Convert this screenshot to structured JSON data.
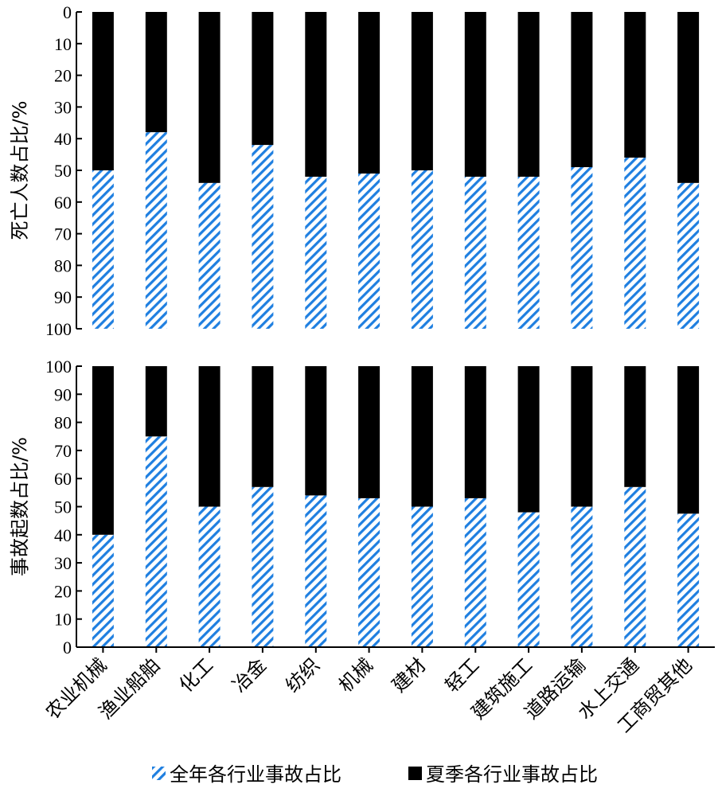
{
  "chart_data": [
    {
      "type": "bar",
      "stacked": true,
      "ylabel": "死亡人数占比/%",
      "ylim": [
        0,
        100
      ],
      "y_inverted": true,
      "yticks": [
        "0",
        "10",
        "20",
        "30",
        "40",
        "50",
        "60",
        "70",
        "80",
        "90",
        "100"
      ],
      "categories": [
        "农业机械",
        "渔业船舶",
        "化工",
        "冶金",
        "纺织",
        "机械",
        "建材",
        "轻工",
        "建筑施工",
        "道路运输",
        "水上交通",
        "工商贸其他"
      ],
      "series": [
        {
          "name": "夏季各行业事故占比",
          "values": [
            50,
            38,
            54,
            42,
            52,
            51,
            50,
            52,
            52,
            49,
            46,
            54
          ]
        },
        {
          "name": "全年各行业事故占比",
          "values": [
            50,
            62,
            46,
            58,
            48,
            49,
            50,
            48,
            48,
            51,
            54,
            46
          ]
        }
      ]
    },
    {
      "type": "bar",
      "stacked": true,
      "ylabel": "事故起数占比/%",
      "ylim": [
        0,
        100
      ],
      "yticks": [
        "0",
        "10",
        "20",
        "30",
        "40",
        "50",
        "60",
        "70",
        "80",
        "90",
        "100"
      ],
      "categories": [
        "农业机械",
        "渔业船舶",
        "化工",
        "冶金",
        "纺织",
        "机械",
        "建材",
        "轻工",
        "建筑施工",
        "道路运输",
        "水上交通",
        "工商贸其他"
      ],
      "series": [
        {
          "name": "全年各行业事故占比",
          "values": [
            40,
            75,
            50,
            57,
            54,
            53,
            50,
            53,
            48,
            50,
            57,
            47.5
          ]
        },
        {
          "name": "夏季各行业事故占比",
          "values": [
            60,
            25,
            50,
            43,
            46,
            47,
            50,
            47,
            52,
            50,
            43,
            52.5
          ]
        }
      ]
    }
  ],
  "legend": {
    "placement": "bottom",
    "items": [
      {
        "label": "全年各行业事故占比",
        "color": "#1f7fe0",
        "pattern": "diagonal-hatch"
      },
      {
        "label": "夏季各行业事故占比",
        "color": "#000000",
        "pattern": "solid"
      }
    ]
  }
}
